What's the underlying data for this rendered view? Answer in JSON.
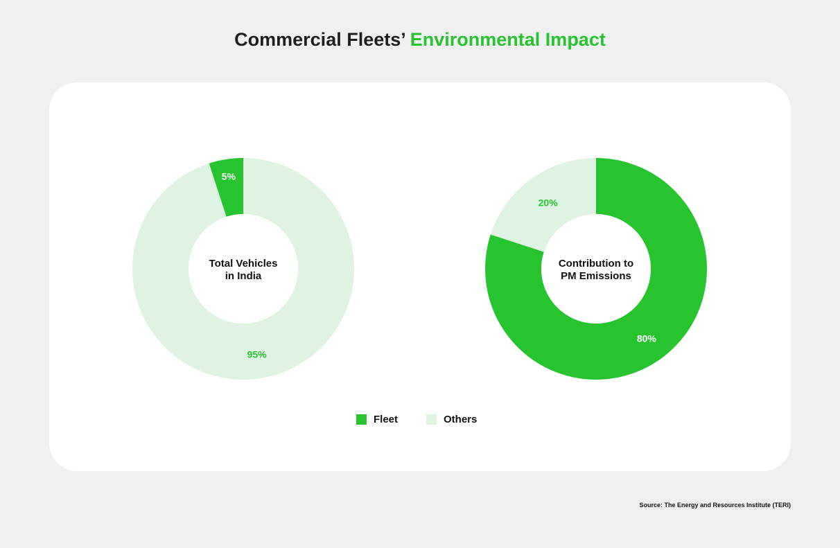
{
  "title": {
    "prefix": "Commercial Fleets’ ",
    "accent": "Environmental Impact"
  },
  "colors": {
    "fleet": "#27c430",
    "others": "#dff3e2",
    "background": "#f0f0f0",
    "card": "#ffffff"
  },
  "chart_data": [
    {
      "type": "pie",
      "center_label": [
        "Total Vehicles",
        "in India"
      ],
      "categories": [
        "Fleet",
        "Others"
      ],
      "values": [
        5,
        95
      ],
      "data_labels": [
        "5%",
        "95%"
      ]
    },
    {
      "type": "pie",
      "center_label": [
        "Contribution to",
        "PM Emissions"
      ],
      "categories": [
        "Fleet",
        "Others"
      ],
      "values": [
        80,
        20
      ],
      "data_labels": [
        "80%",
        "20%"
      ]
    }
  ],
  "legend": [
    {
      "label": "Fleet",
      "color": "#27c430"
    },
    {
      "label": "Others",
      "color": "#dff3e2"
    }
  ],
  "source": "Source: The Energy and Resources Institute (TERI)"
}
